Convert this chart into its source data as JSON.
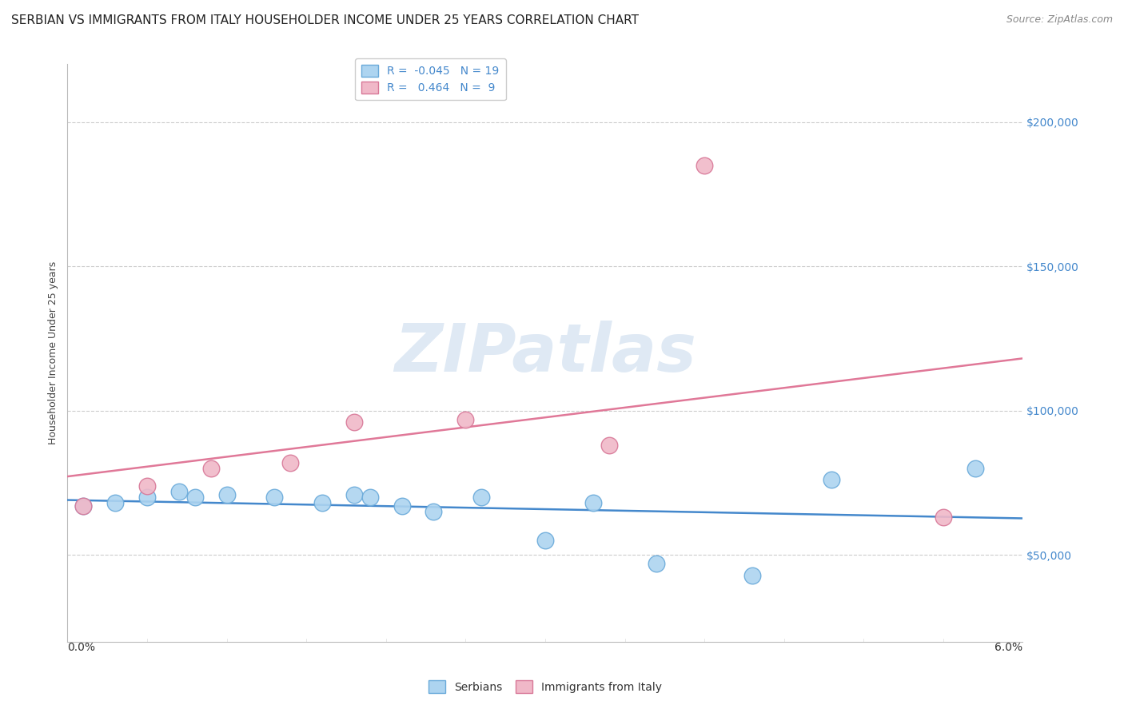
{
  "title": "SERBIAN VS IMMIGRANTS FROM ITALY HOUSEHOLDER INCOME UNDER 25 YEARS CORRELATION CHART",
  "source": "Source: ZipAtlas.com",
  "ylabel": "Householder Income Under 25 years",
  "xlim": [
    0.0,
    0.06
  ],
  "ylim": [
    20000,
    220000
  ],
  "yticks": [
    50000,
    100000,
    150000,
    200000
  ],
  "ytick_labels": [
    "$50,000",
    "$100,000",
    "$150,000",
    "$200,000"
  ],
  "background_color": "#ffffff",
  "watermark_text": "ZIPatlas",
  "serbians": {
    "color": "#add4f0",
    "edge_color": "#6aaada",
    "R": -0.045,
    "N": 19,
    "x": [
      0.001,
      0.003,
      0.005,
      0.007,
      0.008,
      0.01,
      0.013,
      0.016,
      0.018,
      0.019,
      0.021,
      0.023,
      0.026,
      0.03,
      0.033,
      0.037,
      0.043,
      0.048,
      0.057
    ],
    "y": [
      67000,
      68000,
      70000,
      72000,
      70000,
      71000,
      70000,
      68000,
      71000,
      70000,
      67000,
      65000,
      70000,
      55000,
      68000,
      47000,
      43000,
      76000,
      80000
    ]
  },
  "italy": {
    "color": "#f0b8c8",
    "edge_color": "#d87898",
    "R": 0.464,
    "N": 9,
    "x": [
      0.001,
      0.005,
      0.009,
      0.014,
      0.018,
      0.025,
      0.034,
      0.04,
      0.055
    ],
    "y": [
      67000,
      74000,
      80000,
      82000,
      96000,
      97000,
      88000,
      185000,
      63000
    ]
  },
  "line_serbian_color": "#4488cc",
  "line_italy_color": "#e07898",
  "title_fontsize": 11,
  "source_fontsize": 9,
  "axis_label_fontsize": 9,
  "tick_fontsize": 10,
  "legend_fontsize": 10,
  "legend_text_color": "#4488cc",
  "tick_color": "#4488cc"
}
